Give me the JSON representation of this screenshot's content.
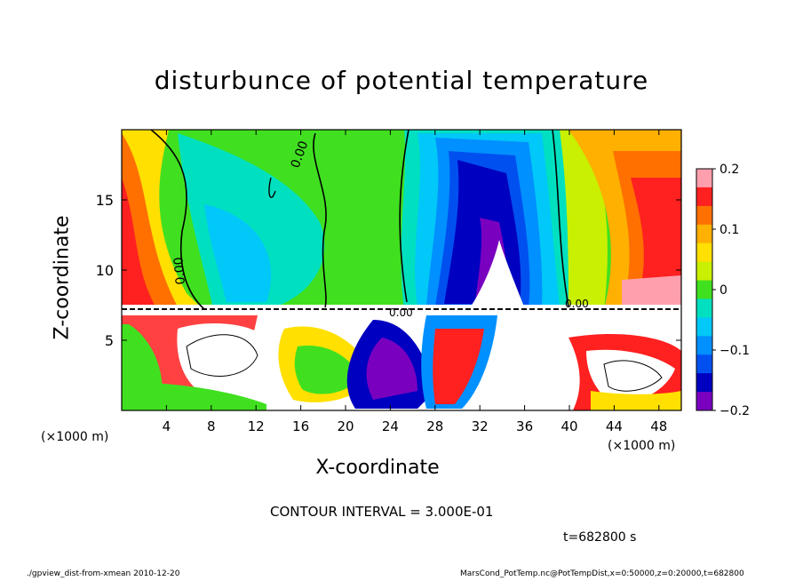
{
  "chart_data": {
    "type": "heatmap",
    "title": "disturbunce of potential temperature",
    "xlabel": "X-coordinate",
    "ylabel": "Z-coordinate",
    "x_unit": "(×1000 m)",
    "x_ticks": [
      4,
      8,
      12,
      16,
      20,
      24,
      28,
      32,
      36,
      40,
      44,
      48
    ],
    "y_ticks": [
      5,
      10,
      15
    ],
    "xlim": [
      0,
      50
    ],
    "ylim": [
      0,
      20
    ],
    "colorbar": {
      "range": [
        -0.2,
        0.2
      ],
      "ticks": [
        "0.2",
        "0.1",
        "0",
        "−0.1",
        "−0.2"
      ]
    },
    "contour_label": "0.00",
    "contour_interval": "CONTOUR INTERVAL = 3.000E-01",
    "time": "t=682800 s"
  },
  "colors": {
    "colorbar": [
      "#ff9fae",
      "#ff2020",
      "#ff7000",
      "#ffb000",
      "#ffe000",
      "#c8f000",
      "#40e020",
      "#00e0c0",
      "#00c8f8",
      "#0090ff",
      "#0050f0",
      "#0000c0",
      "#7a00c0"
    ]
  },
  "footer": {
    "left": "./gpview_dist-from-xmean   2010-12-20",
    "right": "MarsCond_PotTemp.nc@PotTempDist,x=0:50000,z=0:20000,t=682800"
  }
}
